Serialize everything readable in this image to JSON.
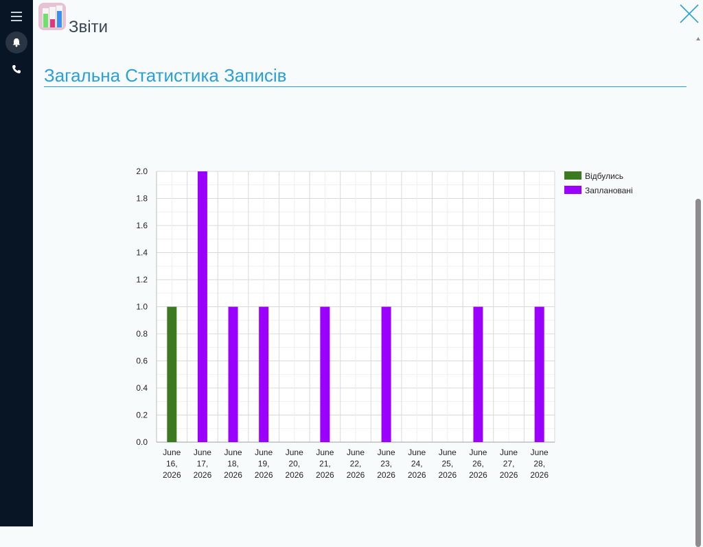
{
  "app": {
    "title": "Звіти",
    "icon": "bar-chart-app-icon"
  },
  "sidebar": {
    "items": [
      {
        "name": "menu",
        "icon": "hamburger-menu-icon"
      },
      {
        "name": "notifications",
        "icon": "bell-icon"
      },
      {
        "name": "phone",
        "icon": "phone-icon"
      }
    ]
  },
  "header": {
    "close_icon": "close-icon"
  },
  "page": {
    "heading": "Загальна Статистика Записів"
  },
  "colors": {
    "accent": "#2a9fd8",
    "sidebar_bg": "#071525",
    "done": "#3b7a1e",
    "planned": "#9b00ff"
  },
  "chart_data": {
    "type": "bar",
    "title": "",
    "xlabel": "",
    "ylabel": "",
    "ylim": [
      0,
      2
    ],
    "yticks": [
      "0.0",
      "0.2",
      "0.4",
      "0.6",
      "0.8",
      "1.0",
      "1.2",
      "1.4",
      "1.6",
      "1.8",
      "2.0"
    ],
    "categories": [
      [
        "June",
        "16,",
        "2026"
      ],
      [
        "June",
        "17,",
        "2026"
      ],
      [
        "June",
        "18,",
        "2026"
      ],
      [
        "June",
        "19,",
        "2026"
      ],
      [
        "June",
        "20,",
        "2026"
      ],
      [
        "June",
        "21,",
        "2026"
      ],
      [
        "June",
        "22,",
        "2026"
      ],
      [
        "June",
        "23,",
        "2026"
      ],
      [
        "June",
        "24,",
        "2026"
      ],
      [
        "June",
        "25,",
        "2026"
      ],
      [
        "June",
        "26,",
        "2026"
      ],
      [
        "June",
        "27,",
        "2026"
      ],
      [
        "June",
        "28,",
        "2026"
      ]
    ],
    "series": [
      {
        "name": "Відбулись",
        "color": "#3b7a1e",
        "values": [
          1,
          0,
          0,
          0,
          0,
          0,
          0,
          0,
          0,
          0,
          0,
          0,
          0
        ]
      },
      {
        "name": "Заплановані",
        "color": "#9b00ff",
        "values": [
          0,
          2,
          1,
          1,
          0,
          1,
          0,
          1,
          0,
          0,
          1,
          0,
          1
        ]
      }
    ],
    "grid": true,
    "legend": "right"
  }
}
